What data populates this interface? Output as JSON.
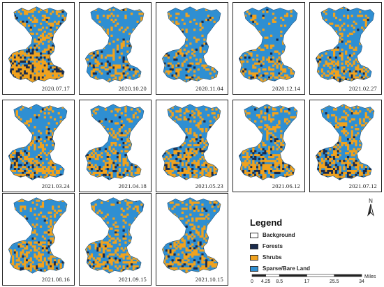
{
  "colors": {
    "background": "#ffffff",
    "forests": "#1a2b4c",
    "shrubs": "#f0a21e",
    "sparse": "#2f8fd2"
  },
  "panels": [
    {
      "date": "2020.07.17",
      "mix": {
        "sparse": 0.35,
        "shrubs": 0.5,
        "forests": 0.15
      }
    },
    {
      "date": "2020.10.20",
      "mix": {
        "sparse": 0.72,
        "shrubs": 0.25,
        "forests": 0.03
      }
    },
    {
      "date": "2020.11.04",
      "mix": {
        "sparse": 0.74,
        "shrubs": 0.23,
        "forests": 0.03
      }
    },
    {
      "date": "2020.12.14",
      "mix": {
        "sparse": 0.72,
        "shrubs": 0.24,
        "forests": 0.04
      }
    },
    {
      "date": "2021.02.27",
      "mix": {
        "sparse": 0.66,
        "shrubs": 0.3,
        "forests": 0.04
      }
    },
    {
      "date": "2021.03.24",
      "mix": {
        "sparse": 0.62,
        "shrubs": 0.32,
        "forests": 0.06
      }
    },
    {
      "date": "2021.04.18",
      "mix": {
        "sparse": 0.6,
        "shrubs": 0.34,
        "forests": 0.06
      }
    },
    {
      "date": "2021.05.23",
      "mix": {
        "sparse": 0.55,
        "shrubs": 0.38,
        "forests": 0.07
      }
    },
    {
      "date": "2021.06.12",
      "mix": {
        "sparse": 0.52,
        "shrubs": 0.4,
        "forests": 0.08
      }
    },
    {
      "date": "2021.07.12",
      "mix": {
        "sparse": 0.5,
        "shrubs": 0.4,
        "forests": 0.1
      }
    },
    {
      "date": "2021.08.16",
      "mix": {
        "sparse": 0.58,
        "shrubs": 0.38,
        "forests": 0.04
      }
    },
    {
      "date": "2021.09.15",
      "mix": {
        "sparse": 0.6,
        "shrubs": 0.36,
        "forests": 0.04
      }
    },
    {
      "date": "2021.10.15",
      "mix": {
        "sparse": 0.6,
        "shrubs": 0.36,
        "forests": 0.04
      }
    }
  ],
  "legend": {
    "title": "Legend",
    "items": [
      {
        "label": "Background",
        "color": "#ffffff"
      },
      {
        "label": "Forests",
        "color": "#1a2b4c"
      },
      {
        "label": "Shrubs",
        "color": "#f0a21e"
      },
      {
        "label": "Sparse/Bare Land",
        "color": "#2f8fd2"
      }
    ]
  },
  "north_label": "N",
  "scale": {
    "ticks": [
      "0",
      "4.25",
      "8.5",
      "17",
      "25.5",
      "34"
    ],
    "tick_values": [
      0,
      4.25,
      8.5,
      17,
      25.5,
      34
    ],
    "unit": "Miles"
  }
}
